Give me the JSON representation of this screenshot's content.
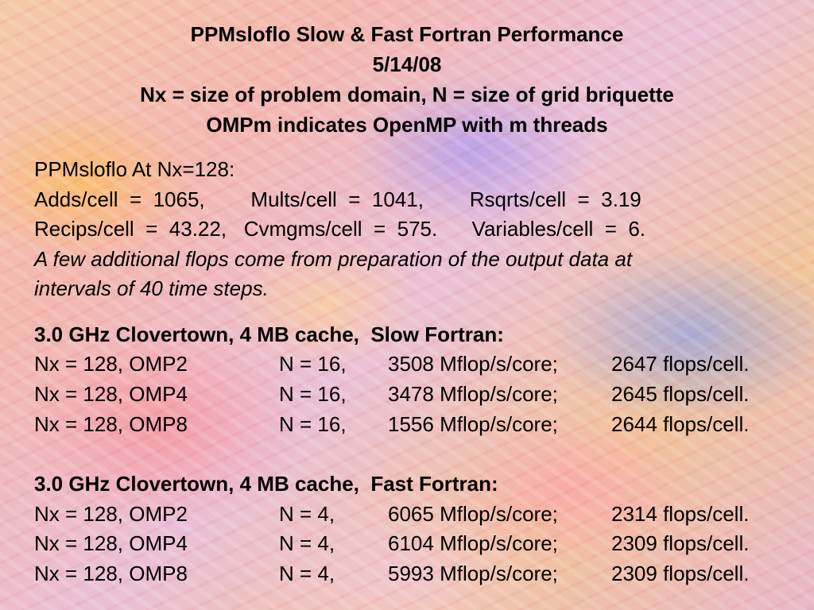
{
  "title": {
    "line1": "PPMsloflo  Slow & Fast  Fortran  Performance",
    "line2": "5/14/08",
    "line3": "Nx = size of problem domain,   N = size of grid briquette",
    "line4": "OMPm  indicates  OpenMP with  m  threads"
  },
  "params": {
    "heading": "PPMsloflo At Nx=128:",
    "line1": "Adds/cell  =  1065,        Mults/cell  =  1041,        Rsqrts/cell  =  3.19",
    "line2": "Recips/cell  =  43.22,   Cvmgms/cell  =  575.      Variables/cell  =  6.",
    "note1": "A few additional flops come from preparation of the output data at",
    "note2": "intervals of 40 time steps."
  },
  "slow": {
    "heading": "3.0 GHz Clovertown, 4 MB cache,  Slow Fortran:",
    "rows": [
      {
        "config": "Nx = 128, OMP2",
        "n": "N = 16,",
        "rate": "3508 Mflop/s/core;",
        "flops": "2647 flops/cell."
      },
      {
        "config": "Nx = 128, OMP4",
        "n": "N = 16,",
        "rate": "3478 Mflop/s/core;",
        "flops": "2645 flops/cell."
      },
      {
        "config": "Nx = 128, OMP8",
        "n": "N = 16,",
        "rate": "1556 Mflop/s/core;",
        "flops": "2644 flops/cell."
      }
    ]
  },
  "fast": {
    "heading": "3.0 GHz Clovertown, 4 MB cache,  Fast Fortran:",
    "rows": [
      {
        "config": "Nx = 128, OMP2",
        "n": "N = 4,",
        "rate": "6065 Mflop/s/core;",
        "flops": "2314 flops/cell."
      },
      {
        "config": "Nx = 128, OMP4",
        "n": "N = 4,",
        "rate": "6104 Mflop/s/core;",
        "flops": "2309 flops/cell."
      },
      {
        "config": "Nx = 128, OMP8",
        "n": "N = 4,",
        "rate": "5993 Mflop/s/core;",
        "flops": "2309 flops/cell."
      }
    ]
  }
}
